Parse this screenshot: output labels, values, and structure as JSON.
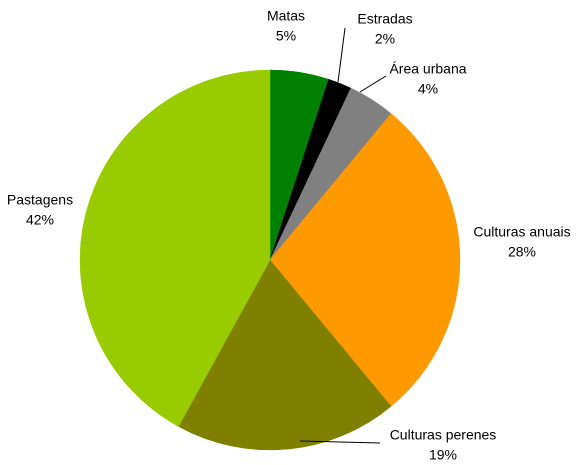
{
  "chart_data": {
    "type": "pie",
    "categories": [
      "Matas",
      "Estradas",
      "Área urbana",
      "Culturas anuais",
      "Culturas perenes",
      "Pastagens"
    ],
    "values": [
      5,
      2,
      4,
      28,
      19,
      42
    ],
    "value_labels": [
      "5%",
      "2%",
      "4%",
      "28%",
      "19%",
      "42%"
    ],
    "colors": [
      "#008000",
      "#000000",
      "#808080",
      "#ff9900",
      "#808000",
      "#99cc00"
    ]
  }
}
